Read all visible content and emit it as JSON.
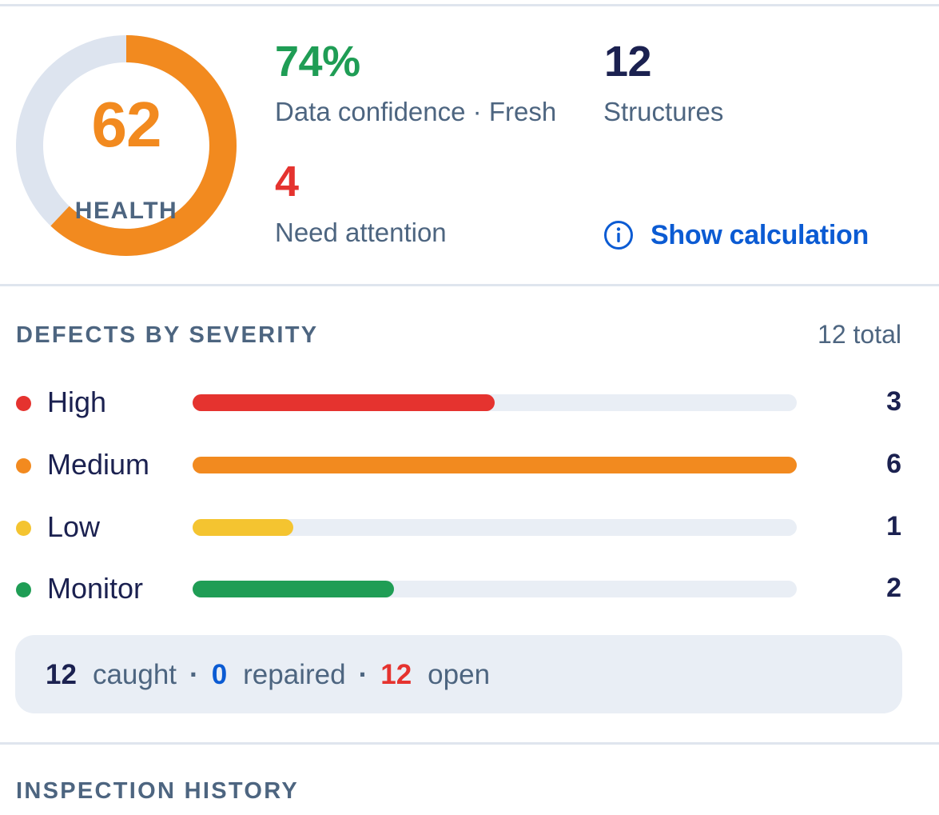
{
  "health": {
    "score": "62",
    "label": "HEALTH",
    "fraction": 0.62,
    "ring_color": "#f28a1f",
    "track_color": "#dde4ef"
  },
  "stats": {
    "confidence_value": "74%",
    "confidence_label": "Data confidence · Fresh",
    "structures_value": "12",
    "structures_label": "Structures",
    "attention_value": "4",
    "attention_label": "Need attention"
  },
  "show_calculation": {
    "label": "Show calculation",
    "icon": "info-circle-icon"
  },
  "defects": {
    "title": "DEFECTS BY SEVERITY",
    "total": "12 total",
    "max": 6,
    "rows": [
      {
        "name": "High",
        "count": "3",
        "value": 3,
        "color": "#e5332f"
      },
      {
        "name": "Medium",
        "count": "6",
        "value": 6,
        "color": "#f28a1f"
      },
      {
        "name": "Low",
        "count": "1",
        "value": 1,
        "color": "#f4c430"
      },
      {
        "name": "Monitor",
        "count": "2",
        "value": 2,
        "color": "#1f9d55"
      }
    ]
  },
  "summary": {
    "caught_value": "12",
    "caught_label": "caught",
    "repaired_value": "0",
    "repaired_label": "repaired",
    "open_value": "12",
    "open_label": "open",
    "separator": "·"
  },
  "inspection": {
    "title": "INSPECTION HISTORY"
  },
  "colors": {
    "green": "#1f9d55",
    "red": "#e5332f",
    "navy": "#1b2150",
    "blue": "#0b5bd3",
    "muted": "#4d6580"
  }
}
